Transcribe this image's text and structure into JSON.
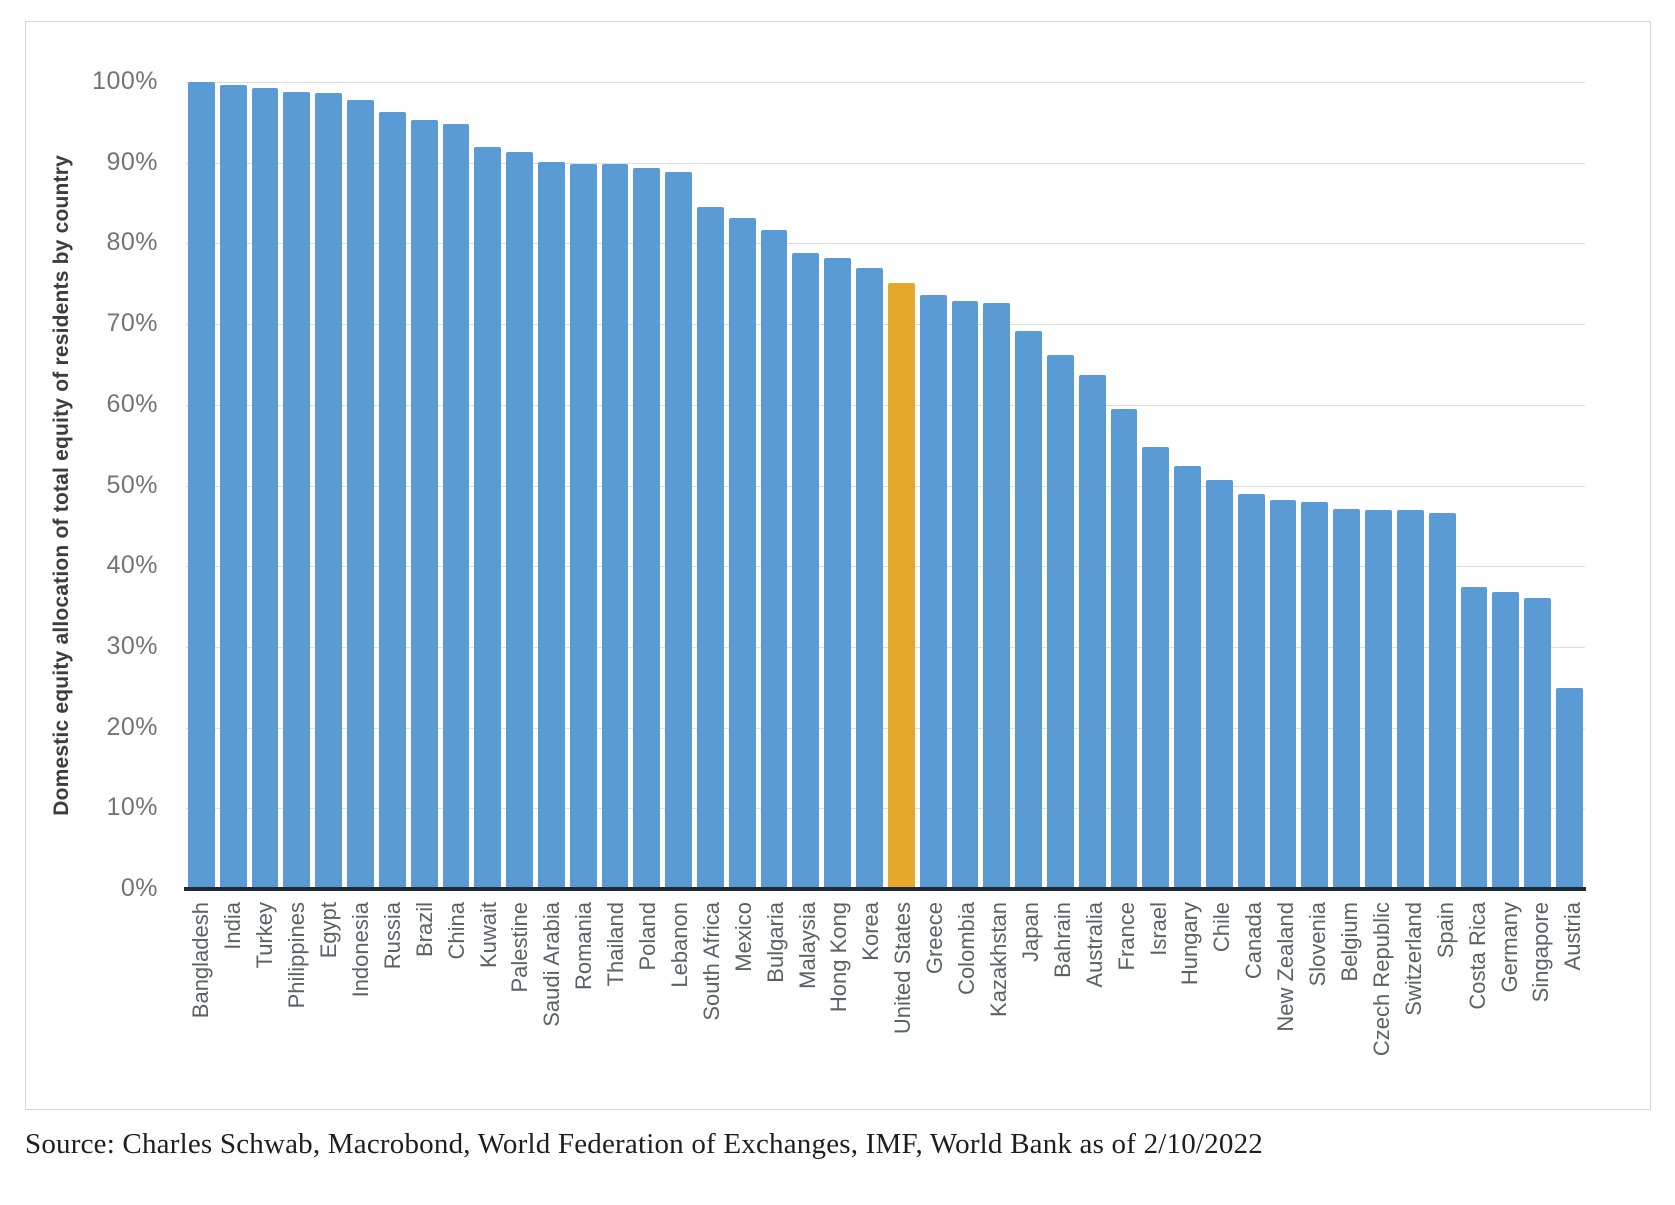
{
  "chart_data": {
    "type": "bar",
    "title": "",
    "xlabel": "",
    "ylabel": "Domestic equity allocation of total equity of residents by country",
    "ylim": [
      0,
      100
    ],
    "y_tick_labels": [
      "0%",
      "10%",
      "20%",
      "30%",
      "40%",
      "50%",
      "60%",
      "70%",
      "80%",
      "90%",
      "100%"
    ],
    "grid": "horizontal",
    "legend": "none",
    "bar_color": "#5B9BD5",
    "highlight_color": "#E6A72B",
    "highlight_category": "United States",
    "categories": [
      "Bangladesh",
      "India",
      "Turkey",
      "Philippines",
      "Egypt",
      "Indonesia",
      "Russia",
      "Brazil",
      "China",
      "Kuwait",
      "Palestine",
      "Saudi Arabia",
      "Romania",
      "Thailand",
      "Poland",
      "Lebanon",
      "South Africa",
      "Mexico",
      "Bulgaria",
      "Malaysia",
      "Hong Kong",
      "Korea",
      "United States",
      "Greece",
      "Colombia",
      "Kazakhstan",
      "Japan",
      "Bahrain",
      "Australia",
      "France",
      "Israel",
      "Hungary",
      "Chile",
      "Canada",
      "New Zealand",
      "Slovenia",
      "Belgium",
      "Czech Republic",
      "Switzerland",
      "Spain",
      "Costa Rica",
      "Germany",
      "Singapore",
      "Austria"
    ],
    "values": [
      100,
      99.6,
      99.3,
      98.8,
      98.6,
      97.8,
      96.3,
      95.3,
      94.8,
      92.0,
      91.3,
      90.1,
      89.9,
      89.8,
      89.3,
      88.8,
      84.5,
      83.2,
      81.7,
      78.8,
      78.2,
      77.0,
      75.1,
      73.6,
      72.9,
      72.6,
      69.1,
      66.2,
      63.7,
      59.5,
      54.8,
      52.4,
      50.7,
      49.0,
      48.2,
      48.0,
      47.1,
      47.0,
      47.0,
      46.6,
      37.4,
      36.8,
      36.1,
      24.9
    ]
  },
  "source_note": "Source: Charles Schwab, Macrobond, World Federation of Exchanges, IMF, World Bank as of 2/10/2022"
}
